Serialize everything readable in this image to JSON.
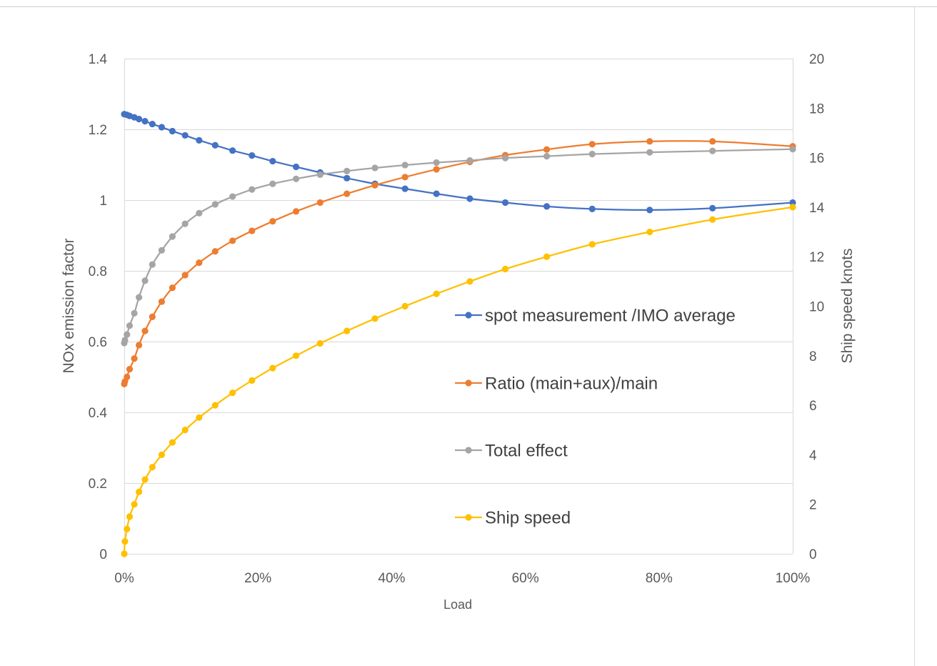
{
  "chart_data": {
    "type": "line",
    "title": "",
    "xlabel": "Load",
    "ylabel_left": "NOx  emission factor",
    "ylabel_right": "Ship speed knots",
    "xlim": [
      0,
      1
    ],
    "ylim_left": [
      0,
      1.4
    ],
    "ylim_right": [
      0,
      20
    ],
    "x_ticks": [
      0,
      0.2,
      0.4,
      0.6,
      0.8,
      1.0
    ],
    "x_tick_labels": [
      "0%",
      "20%",
      "40%",
      "60%",
      "80%",
      "100%"
    ],
    "y_left_ticks": [
      0,
      0.2,
      0.4,
      0.6,
      0.8,
      1,
      1.2,
      1.4
    ],
    "y_left_tick_labels": [
      "0",
      "0.2",
      "0.4",
      "0.6",
      "0.8",
      "1",
      "1.2",
      "1.4"
    ],
    "y_right_ticks": [
      0,
      2,
      4,
      6,
      8,
      10,
      12,
      14,
      16,
      18,
      20
    ],
    "y_right_tick_labels": [
      "0",
      "2",
      "4",
      "6",
      "8",
      "10",
      "12",
      "14",
      "16",
      "18",
      "20"
    ],
    "grid": true,
    "legend_position": "inside-right",
    "x": [
      0.0,
      0.001,
      0.004,
      0.008,
      0.015,
      0.022,
      0.031,
      0.042,
      0.056,
      0.072,
      0.091,
      0.112,
      0.136,
      0.162,
      0.191,
      0.222,
      0.257,
      0.293,
      0.333,
      0.375,
      0.42,
      0.467,
      0.517,
      0.57,
      0.625,
      0.683,
      0.744,
      0.808,
      0.874,
      0.942,
      1.0
    ],
    "series": [
      {
        "name": "spot measurement /IMO average",
        "axis": "left",
        "color": "#4472C4",
        "x": [
          0.0,
          0.004,
          0.008,
          0.015,
          0.022,
          0.031,
          0.042,
          0.056,
          0.072,
          0.091,
          0.112,
          0.136,
          0.162,
          0.191,
          0.222,
          0.257,
          0.293,
          0.333,
          0.375,
          0.42,
          0.467,
          0.517,
          0.57,
          0.632,
          0.7,
          0.786,
          0.88,
          1.0
        ],
        "values": [
          1.243,
          1.241,
          1.238,
          1.234,
          1.229,
          1.223,
          1.215,
          1.206,
          1.195,
          1.183,
          1.169,
          1.155,
          1.14,
          1.126,
          1.11,
          1.094,
          1.078,
          1.062,
          1.046,
          1.032,
          1.018,
          1.004,
          0.993,
          0.982,
          0.975,
          0.972,
          0.977,
          0.993
        ]
      },
      {
        "name": "Ratio  (main+aux)/main",
        "axis": "left",
        "color": "#ED7D31",
        "x": [
          0.0,
          0.001,
          0.004,
          0.008,
          0.015,
          0.022,
          0.031,
          0.042,
          0.056,
          0.072,
          0.091,
          0.112,
          0.136,
          0.162,
          0.191,
          0.222,
          0.257,
          0.293,
          0.333,
          0.375,
          0.42,
          0.467,
          0.517,
          0.57,
          0.632,
          0.7,
          0.786,
          0.88,
          1.0
        ],
        "values": [
          0.48,
          0.487,
          0.5,
          0.522,
          0.552,
          0.59,
          0.63,
          0.67,
          0.713,
          0.752,
          0.788,
          0.823,
          0.855,
          0.885,
          0.913,
          0.94,
          0.968,
          0.993,
          1.018,
          1.042,
          1.065,
          1.087,
          1.108,
          1.127,
          1.143,
          1.158,
          1.166,
          1.166,
          1.152
        ]
      },
      {
        "name": "Total effect",
        "axis": "left",
        "color": "#A5A5A5",
        "x": [
          0.0,
          0.001,
          0.004,
          0.008,
          0.015,
          0.022,
          0.031,
          0.042,
          0.056,
          0.072,
          0.091,
          0.112,
          0.136,
          0.162,
          0.191,
          0.222,
          0.257,
          0.293,
          0.333,
          0.375,
          0.42,
          0.467,
          0.517,
          0.57,
          0.632,
          0.7,
          0.786,
          0.88,
          1.0
        ],
        "values": [
          0.596,
          0.604,
          0.62,
          0.645,
          0.68,
          0.725,
          0.772,
          0.818,
          0.858,
          0.897,
          0.933,
          0.963,
          0.988,
          1.01,
          1.03,
          1.046,
          1.06,
          1.072,
          1.082,
          1.091,
          1.099,
          1.106,
          1.112,
          1.119,
          1.124,
          1.13,
          1.135,
          1.139,
          1.144
        ]
      },
      {
        "name": "Ship speed",
        "axis": "right",
        "color": "#FFC000",
        "x": [
          0.0,
          0.001,
          0.004,
          0.008,
          0.015,
          0.022,
          0.031,
          0.042,
          0.056,
          0.072,
          0.091,
          0.112,
          0.136,
          0.162,
          0.191,
          0.222,
          0.257,
          0.293,
          0.333,
          0.375,
          0.42,
          0.467,
          0.517,
          0.57,
          0.632,
          0.7,
          0.786,
          0.88,
          1.0
        ],
        "values": [
          0.0,
          0.5,
          1.0,
          1.5,
          2.0,
          2.5,
          3.0,
          3.5,
          4.0,
          4.5,
          5.0,
          5.5,
          6.0,
          6.5,
          7.0,
          7.5,
          8.0,
          8.5,
          9.0,
          9.5,
          10.0,
          10.5,
          11.0,
          11.5,
          12.0,
          12.5,
          13.0,
          13.5,
          14.0
        ]
      }
    ]
  }
}
